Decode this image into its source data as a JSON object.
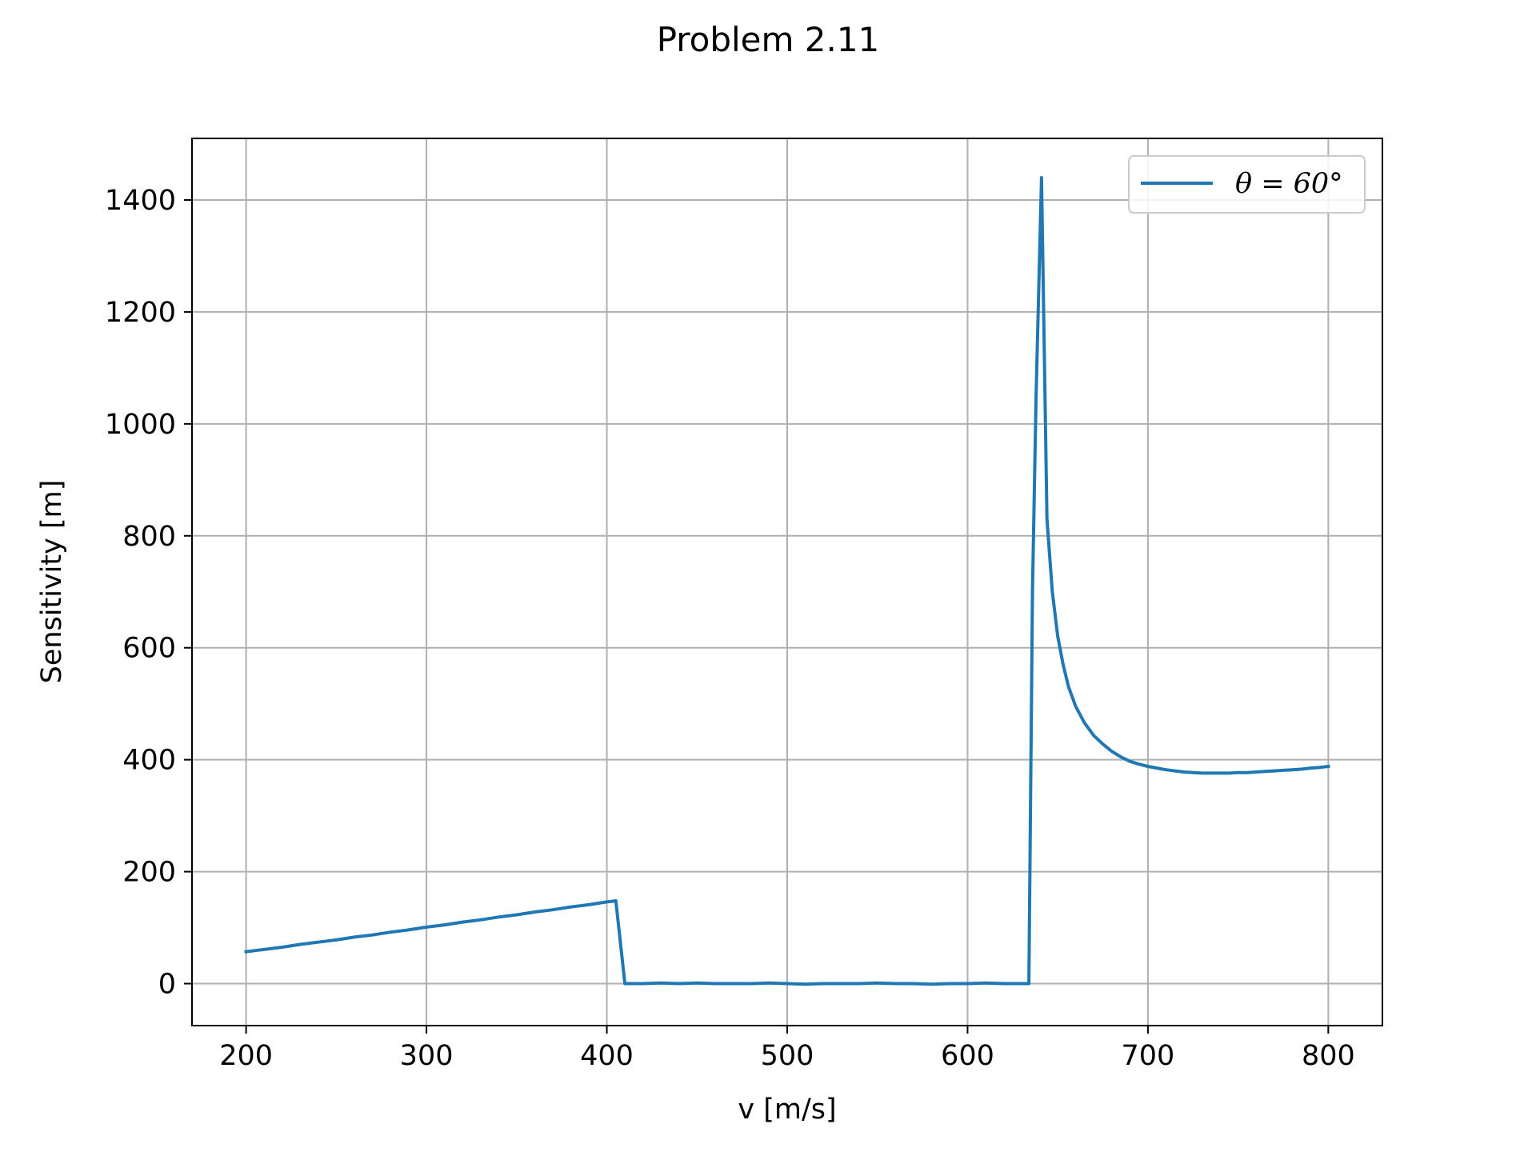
{
  "chart_data": {
    "type": "line",
    "title": "Problem 2.11",
    "xlabel": "v [m/s]",
    "ylabel": "Sensitivity [m]",
    "xlim": [
      170,
      830
    ],
    "ylim": [
      -75,
      1510
    ],
    "xticks": [
      200,
      300,
      400,
      500,
      600,
      700,
      800
    ],
    "yticks": [
      0,
      200,
      400,
      600,
      800,
      1000,
      1200,
      1400
    ],
    "xtick_labels": [
      "200",
      "300",
      "400",
      "500",
      "600",
      "700",
      "800"
    ],
    "ytick_labels": [
      "0",
      "200",
      "400",
      "600",
      "800",
      "1000",
      "1200",
      "1400"
    ],
    "grid": true,
    "legend_position": "top-right",
    "series": [
      {
        "name": "θ = 60°",
        "color": "#1f77b4",
        "x": [
          200,
          210,
          220,
          230,
          240,
          250,
          260,
          270,
          280,
          290,
          300,
          310,
          320,
          330,
          340,
          350,
          360,
          370,
          380,
          390,
          400,
          405,
          410,
          420,
          430,
          440,
          450,
          460,
          470,
          480,
          490,
          500,
          510,
          520,
          530,
          540,
          550,
          560,
          570,
          580,
          590,
          600,
          610,
          620,
          630,
          634,
          636,
          638,
          641,
          644,
          647,
          650,
          653,
          656,
          660,
          665,
          670,
          675,
          680,
          685,
          690,
          695,
          700,
          705,
          710,
          715,
          720,
          725,
          730,
          735,
          740,
          745,
          750,
          755,
          760,
          765,
          770,
          775,
          780,
          785,
          790,
          795,
          800
        ],
        "y": [
          57,
          61,
          65,
          70,
          74,
          78,
          83,
          87,
          92,
          96,
          101,
          105,
          110,
          114,
          119,
          123,
          128,
          132,
          137,
          141,
          146,
          148,
          0,
          0,
          1,
          0,
          1,
          0,
          0,
          0,
          1,
          0,
          -1,
          0,
          0,
          0,
          1,
          0,
          0,
          -1,
          0,
          0,
          1,
          0,
          0,
          0,
          700,
          1050,
          1440,
          830,
          700,
          620,
          570,
          530,
          495,
          465,
          443,
          428,
          415,
          405,
          397,
          392,
          388,
          385,
          382,
          380,
          378,
          377,
          376,
          376,
          376,
          376,
          377,
          377,
          378,
          379,
          380,
          381,
          382,
          383,
          385,
          386,
          388
        ]
      }
    ]
  }
}
